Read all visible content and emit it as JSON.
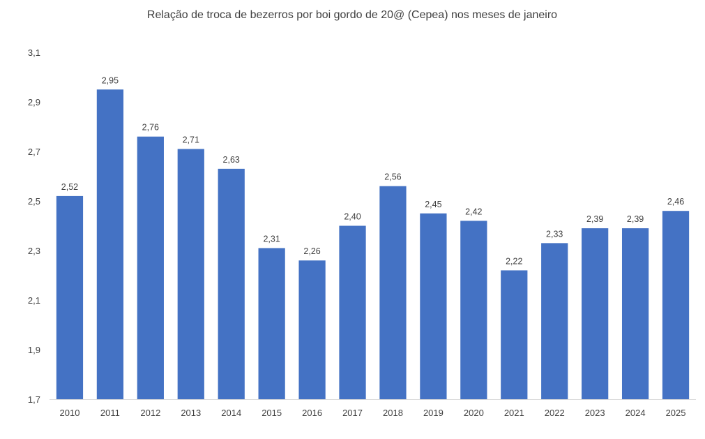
{
  "chart_data": {
    "type": "bar",
    "title": "Relação de troca de bezerros por boi gordo de 20@ (Cepea) nos meses de janeiro",
    "xlabel": "",
    "ylabel": "",
    "ylim": [
      1.7,
      3.1
    ],
    "yticks": [
      "1,7",
      "1,9",
      "2,1",
      "2,3",
      "2,5",
      "2,7",
      "2,9",
      "3,1"
    ],
    "ytick_values": [
      1.7,
      1.9,
      2.1,
      2.3,
      2.5,
      2.7,
      2.9,
      3.1
    ],
    "categories": [
      "2010",
      "2011",
      "2012",
      "2013",
      "2014",
      "2015",
      "2016",
      "2017",
      "2018",
      "2019",
      "2020",
      "2021",
      "2022",
      "2023",
      "2024",
      "2025"
    ],
    "values": [
      2.52,
      2.95,
      2.76,
      2.71,
      2.63,
      2.31,
      2.26,
      2.4,
      2.56,
      2.45,
      2.42,
      2.22,
      2.33,
      2.39,
      2.39,
      2.46
    ],
    "value_labels": [
      "2,52",
      "2,95",
      "2,76",
      "2,71",
      "2,63",
      "2,31",
      "2,26",
      "2,40",
      "2,56",
      "2,45",
      "2,42",
      "2,22",
      "2,33",
      "2,39",
      "2,39",
      "2,46"
    ],
    "grid": false,
    "legend": "none",
    "colors": {
      "bar": "#4472C4",
      "axis": "#D9D9D9",
      "text": "#404040"
    }
  }
}
